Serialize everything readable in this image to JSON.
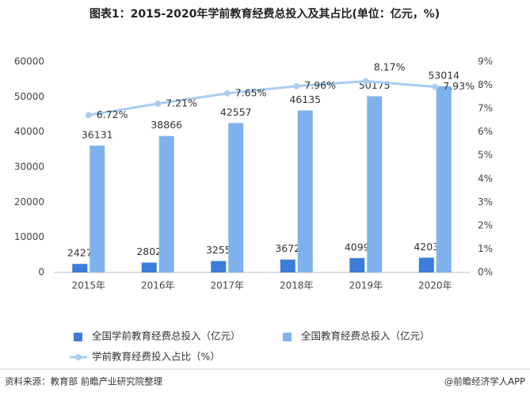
{
  "chart_data": {
    "type": "bar",
    "title": "图表1：2015-2020年学前教育经费总投入及其占比(单位：亿元，%)",
    "categories": [
      "2015年",
      "2016年",
      "2017年",
      "2018年",
      "2019年",
      "2020年"
    ],
    "series": [
      {
        "name": "全国学前教育经费总投入（亿元）",
        "type": "bar",
        "color": "#3b7dd8",
        "values": [
          2427,
          2802,
          3255,
          3672,
          4099,
          4203
        ]
      },
      {
        "name": "全国教育经费总投入（亿元）",
        "type": "bar",
        "color": "#7fb2ec",
        "values": [
          36131,
          38866,
          42557,
          46135,
          50175,
          53014
        ]
      },
      {
        "name": "学前教育经费投入占比（%）",
        "type": "line",
        "axis": "y2",
        "color": "#a9cdf3",
        "values": [
          6.72,
          7.21,
          7.65,
          7.96,
          8.17,
          7.93
        ],
        "value_labels": [
          "6.72%",
          "7.21%",
          "7.65%",
          "7.96%",
          "8.17%",
          "7.93%"
        ]
      }
    ],
    "ylim": [
      0,
      60000
    ],
    "yticks": [
      0,
      10000,
      20000,
      30000,
      40000,
      50000,
      60000
    ],
    "y2lim": [
      0,
      9
    ],
    "y2ticks": [
      {
        "value": 0,
        "label": "0%"
      },
      {
        "value": 1,
        "label": "1%"
      },
      {
        "value": 2,
        "label": "2%"
      },
      {
        "value": 3,
        "label": "3%"
      },
      {
        "value": 4,
        "label": "4%"
      },
      {
        "value": 5,
        "label": "5%"
      },
      {
        "value": 6,
        "label": "6%"
      },
      {
        "value": 7,
        "label": "7%"
      },
      {
        "value": 8,
        "label": "8%"
      },
      {
        "value": 9,
        "label": "9%"
      }
    ],
    "grid": false,
    "source": "资料来源：教育部 前瞻产业研究院整理",
    "credit": "@前瞻经济学人APP"
  }
}
